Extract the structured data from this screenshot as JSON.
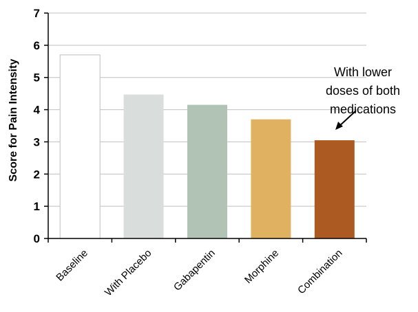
{
  "chart_data": {
    "type": "bar",
    "title": "",
    "xlabel": "",
    "ylabel": "Score for Pain Intensity",
    "categories": [
      "Baseline",
      "With Placebo",
      "Gabapentin",
      "Morphine",
      "Combination"
    ],
    "values": [
      5.7,
      4.47,
      4.15,
      3.7,
      3.05
    ],
    "ylim": [
      0,
      7
    ],
    "yticks": [
      "0",
      "1",
      "2",
      "3",
      "4",
      "5",
      "6",
      "7"
    ],
    "grid": true,
    "bar_colors": [
      "#ffffff",
      "#d9dedd",
      "#b0c3b4",
      "#e0b161",
      "#ad5a22"
    ],
    "bar_outline": "#bdbdbd",
    "annotation": {
      "lines": [
        "With lower",
        "doses of both",
        "medications"
      ],
      "points_to": "Combination"
    }
  }
}
